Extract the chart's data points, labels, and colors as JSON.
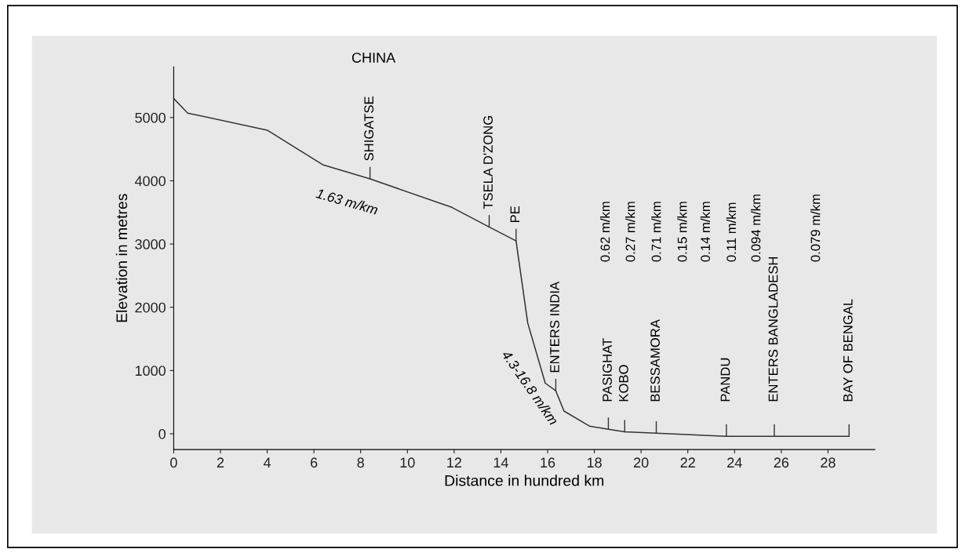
{
  "chart_data": {
    "type": "line",
    "title": "CHINA",
    "xlabel": "Distance in hundred km",
    "ylabel": "Elevation in metres",
    "x": [
      0,
      0.6,
      4.0,
      6.4,
      8.4,
      11.9,
      13.5,
      14.65,
      15.15,
      15.9,
      16.35,
      16.7,
      17.8,
      18.6,
      19.3,
      20.65,
      23.65,
      25.7,
      28.9
    ],
    "series": [
      {
        "color": "#333333",
        "values": [
          5300,
          5070,
          4800,
          4250,
          4030,
          3580,
          3270,
          3050,
          1750,
          800,
          680,
          360,
          120,
          70,
          30,
          10,
          -40,
          -40,
          -40
        ]
      }
    ],
    "xlim": [
      0,
      30
    ],
    "ylim": [
      -250,
      5800
    ],
    "xticks": [
      0,
      2,
      4,
      6,
      8,
      10,
      12,
      14,
      16,
      18,
      20,
      22,
      24,
      26,
      28
    ],
    "yticks": [
      0,
      1000,
      2000,
      3000,
      4000,
      5000
    ],
    "grid": false,
    "legend": false,
    "marker": "none",
    "line_style": "solid",
    "annotations": [
      {
        "text": "SHIGATSE",
        "x": 8.4,
        "y": 4030
      },
      {
        "text": "TSELA D'ZONG",
        "x": 13.5,
        "y": 3270
      },
      {
        "text": "PE",
        "x": 14.65,
        "y": 3050
      },
      {
        "text": "ENTERS INDIA",
        "x": 16.35,
        "y": 680
      },
      {
        "text": "PASIGHAT",
        "x": 18.6,
        "y": 70
      },
      {
        "text": "KOBO",
        "x": 19.3,
        "y": 30
      },
      {
        "text": "BESSAMORA",
        "x": 20.65,
        "y": 10
      },
      {
        "text": "PANDU",
        "x": 23.65,
        "y": -40
      },
      {
        "text": "ENTERS BANGLADESH",
        "x": 25.7,
        "y": -40
      },
      {
        "text": "BAY OF BENGAL",
        "x": 28.9,
        "y": -40
      },
      "0.62 m/km",
      "0.27 m/km",
      "0.71 m/km",
      "0.15 m/km",
      "0.14 m/km",
      "0.11 m/km",
      "0.094 m/km",
      "0.079 m/km",
      "1.63 m/km",
      "4.3-16.8 m/km"
    ]
  }
}
